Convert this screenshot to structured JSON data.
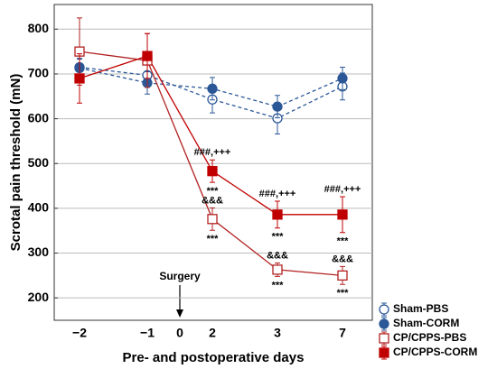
{
  "chart_data": {
    "type": "line",
    "xlabel": "Pre- and postoperative days",
    "ylabel": "Scrotal pain threshold (mN)",
    "categories": [
      "−2",
      "−1",
      "2",
      "3",
      "7"
    ],
    "surgery_tick": "0",
    "surgery_label": "Surgery",
    "ylim": [
      150,
      855
    ],
    "yticks": [
      200,
      300,
      400,
      500,
      600,
      700,
      800
    ],
    "grid": true,
    "legend": "lower right",
    "series": [
      {
        "name": "Sham-PBS",
        "color": "#2b5797",
        "marker": "circle",
        "filled": false,
        "dashed": true,
        "values": [
          715,
          697,
          643,
          601,
          672
        ],
        "errors": [
          20,
          25,
          30,
          35,
          30
        ]
      },
      {
        "name": "Sham-CORM",
        "color": "#2b5797",
        "marker": "circle",
        "filled": true,
        "dashed": true,
        "values": [
          713,
          680,
          667,
          627,
          690
        ],
        "errors": [
          20,
          25,
          25,
          25,
          25
        ]
      },
      {
        "name": "CP/CPPS-PBS",
        "color": "#b22222",
        "marker": "square",
        "filled": false,
        "dashed": false,
        "values": [
          750,
          730,
          376,
          263,
          250
        ],
        "errors": [
          75,
          60,
          25,
          15,
          20
        ],
        "annotations_above": [
          null,
          null,
          "&&&",
          "&&&",
          "&&&"
        ],
        "annotations_below": [
          null,
          null,
          "***",
          "***",
          "***"
        ]
      },
      {
        "name": "CP/CPPS-CORM",
        "color": "#c00000",
        "marker": "square",
        "filled": true,
        "dashed": false,
        "values": [
          690,
          740,
          483,
          386,
          386
        ],
        "errors": [
          55,
          50,
          25,
          30,
          40
        ],
        "annotations_above": [
          null,
          null,
          "###,+++",
          "###,+++",
          "###,+++"
        ],
        "annotations_below": [
          null,
          null,
          "***",
          "***",
          "***"
        ]
      }
    ]
  }
}
